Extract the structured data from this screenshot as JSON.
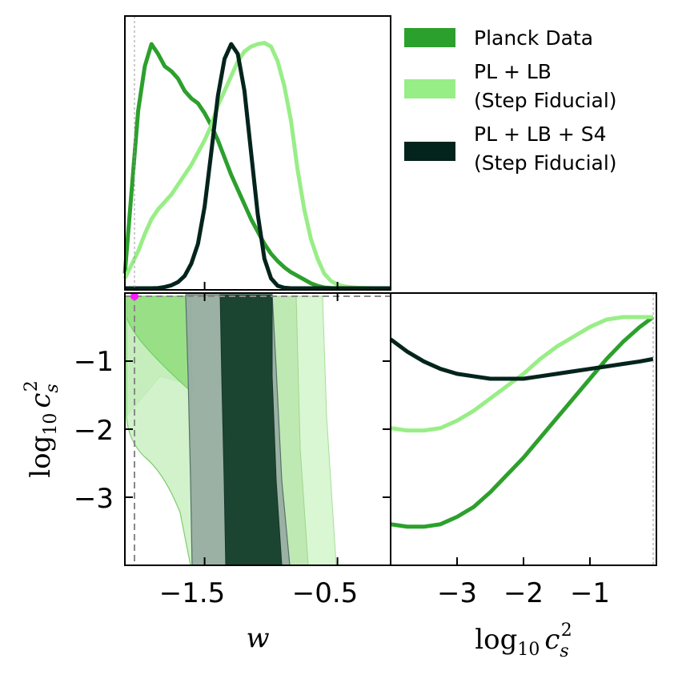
{
  "chart_data": {
    "type": "corner",
    "parameters": {
      "w": {
        "label_main": "w",
        "range": [
          -2.1,
          -0.1
        ],
        "ticks": [
          -1.5,
          -0.5
        ],
        "tick_labels": [
          "−1.5",
          "−0.5"
        ]
      },
      "log10_cs2": {
        "label_main": "log",
        "label_sub": "10",
        "label_var": "c",
        "label_var_sub": "s",
        "label_sup": "2",
        "range": [
          -4.0,
          0.0
        ],
        "ticks": [
          -3,
          -2,
          -1
        ],
        "tick_labels": [
          "−3",
          "−2",
          "−1"
        ]
      }
    },
    "fiducial": {
      "w": -2.03,
      "log10_cs2": -0.05
    },
    "legend": [
      {
        "name": "Planck Data",
        "color": "#2ca02c"
      },
      {
        "name": "PL + LB",
        "name_line2": "(Step Fiducial)",
        "color": "#98ee86"
      },
      {
        "name": "PL + LB + S4",
        "name_line2": "(Step Fiducial)",
        "color": "#03241c"
      }
    ],
    "marginal_w": {
      "x": [
        -2.1,
        -2.0,
        -1.95,
        -1.9,
        -1.85,
        -1.8,
        -1.75,
        -1.7,
        -1.65,
        -1.6,
        -1.55,
        -1.5,
        -1.45,
        -1.4,
        -1.35,
        -1.3,
        -1.25,
        -1.2,
        -1.15,
        -1.1,
        -1.05,
        -1.0,
        -0.95,
        -0.9,
        -0.85,
        -0.8,
        -0.75,
        -0.7,
        -0.65,
        -0.6,
        -0.55,
        -0.5,
        -0.45,
        -0.4,
        -0.35,
        -0.3,
        -0.2,
        -0.1
      ],
      "series": [
        {
          "name": "Planck Data",
          "values": [
            0.06,
            0.72,
            0.9,
            0.99,
            0.95,
            0.9,
            0.88,
            0.85,
            0.8,
            0.77,
            0.75,
            0.71,
            0.66,
            0.6,
            0.53,
            0.46,
            0.4,
            0.34,
            0.28,
            0.23,
            0.18,
            0.14,
            0.11,
            0.085,
            0.065,
            0.05,
            0.035,
            0.02,
            0.01,
            0.003,
            0.001,
            0,
            0,
            0,
            0,
            0,
            0,
            0
          ]
        },
        {
          "name": "PL + LB",
          "values": [
            0.04,
            0.15,
            0.22,
            0.28,
            0.32,
            0.35,
            0.38,
            0.42,
            0.46,
            0.5,
            0.55,
            0.6,
            0.66,
            0.74,
            0.8,
            0.86,
            0.92,
            0.96,
            0.98,
            0.99,
            0.995,
            0.98,
            0.92,
            0.82,
            0.68,
            0.48,
            0.32,
            0.2,
            0.12,
            0.06,
            0.03,
            0.015,
            0.008,
            0.004,
            0.002,
            0.001,
            0,
            0
          ]
        },
        {
          "name": "PL + LB + S4",
          "values": [
            0,
            0,
            0,
            0,
            0.001,
            0.005,
            0.012,
            0.025,
            0.05,
            0.1,
            0.18,
            0.33,
            0.55,
            0.78,
            0.93,
            0.99,
            0.95,
            0.8,
            0.55,
            0.3,
            0.12,
            0.04,
            0.01,
            0.002,
            0,
            0,
            0,
            0,
            0,
            0,
            0,
            0,
            0,
            0,
            0,
            0,
            0,
            0
          ]
        }
      ]
    },
    "marginal_cs2": {
      "x": [
        -4.0,
        -3.75,
        -3.5,
        -3.25,
        -3.0,
        -2.75,
        -2.5,
        -2.25,
        -2.0,
        -1.75,
        -1.5,
        -1.25,
        -1.0,
        -0.75,
        -0.5,
        -0.25,
        -0.05
      ],
      "series": [
        {
          "name": "Planck Data",
          "values": [
            0.16,
            0.15,
            0.15,
            0.16,
            0.19,
            0.23,
            0.29,
            0.36,
            0.43,
            0.51,
            0.59,
            0.67,
            0.75,
            0.83,
            0.9,
            0.96,
            1.0
          ]
        },
        {
          "name": "PL + LB",
          "values": [
            0.55,
            0.54,
            0.54,
            0.55,
            0.58,
            0.62,
            0.67,
            0.72,
            0.77,
            0.83,
            0.88,
            0.92,
            0.96,
            0.99,
            1.0,
            1.0,
            1.0
          ]
        },
        {
          "name": "PL + LB + S4",
          "values": [
            0.91,
            0.86,
            0.82,
            0.79,
            0.77,
            0.76,
            0.75,
            0.75,
            0.75,
            0.76,
            0.77,
            0.78,
            0.79,
            0.8,
            0.81,
            0.82,
            0.83
          ]
        }
      ]
    }
  }
}
